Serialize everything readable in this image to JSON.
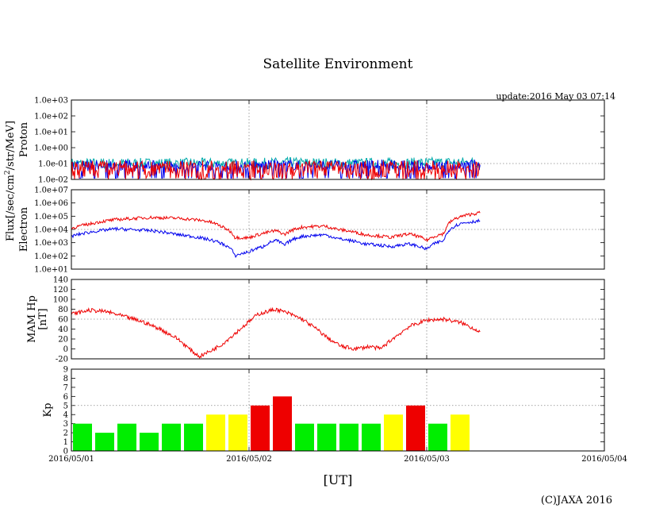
{
  "title": "Satellite Environment",
  "update": "update:2016 May 03 07:14",
  "copyright": "(C)JAXA 2016",
  "x_axis": {
    "label": "[UT]",
    "ticks": [
      "2016/05/01",
      "2016/05/02",
      "2016/05/03",
      "2016/05/04"
    ],
    "range_days": [
      0,
      3
    ],
    "data_end_day": 2.3
  },
  "flux_label": {
    "prefix": "Flux[/sec/cm",
    "sup": "2",
    "suffix": "/str/MeV]"
  },
  "colors": {
    "red": "#ee0000",
    "blue": "#0000ee",
    "green": "#22cc44",
    "teal": "#00aaaa",
    "yellow": "#ffff00",
    "kp_green": "#00ee00",
    "grid": "#888888"
  },
  "chart_data": [
    {
      "name": "proton",
      "type": "line",
      "ylabel": "Proton",
      "scale": "log",
      "ylim": [
        0.01,
        1000
      ],
      "ticks": [
        "1.0e-02",
        "1.0e-01",
        "1.0e+00",
        "1.0e+01",
        "1.0e+02",
        "1.0e+03"
      ],
      "series": [
        {
          "color": "teal",
          "values": [
            [
              0,
              0.1
            ],
            [
              0.25,
              0.1
            ],
            [
              0.5,
              0.1
            ],
            [
              0.75,
              0.1
            ],
            [
              1.0,
              0.1
            ],
            [
              1.25,
              0.11
            ],
            [
              1.5,
              0.1
            ],
            [
              1.75,
              0.1
            ],
            [
              2.0,
              0.11
            ],
            [
              2.3,
              0.12
            ]
          ]
        },
        {
          "color": "blue",
          "values": [
            [
              0,
              0.07
            ],
            [
              0.25,
              0.08
            ],
            [
              0.5,
              0.07
            ],
            [
              0.75,
              0.08
            ],
            [
              1.0,
              0.07
            ],
            [
              1.25,
              0.08
            ],
            [
              1.5,
              0.07
            ],
            [
              1.75,
              0.08
            ],
            [
              2.0,
              0.07
            ],
            [
              2.3,
              0.08
            ]
          ]
        },
        {
          "color": "red",
          "values": [
            [
              0,
              0.02
            ],
            [
              0.5,
              0.02
            ],
            [
              1.0,
              0.02
            ],
            [
              1.5,
              0.02
            ],
            [
              2.0,
              0.02
            ],
            [
              2.3,
              0.02
            ]
          ]
        }
      ]
    },
    {
      "name": "electron",
      "type": "line",
      "ylabel": "Electron",
      "scale": "log",
      "ylim": [
        10,
        10000000
      ],
      "ticks": [
        "1.0e+01",
        "1.0e+02",
        "1.0e+03",
        "1.0e+04",
        "1.0e+05",
        "1.0e+06",
        "1.0e+07"
      ],
      "series": [
        {
          "color": "red",
          "values": [
            [
              0,
              12000
            ],
            [
              0.1,
              25000
            ],
            [
              0.25,
              55000
            ],
            [
              0.45,
              80000
            ],
            [
              0.6,
              70000
            ],
            [
              0.75,
              45000
            ],
            [
              0.85,
              15000
            ],
            [
              0.92,
              2500
            ],
            [
              1.0,
              2300
            ],
            [
              1.08,
              5000
            ],
            [
              1.15,
              8000
            ],
            [
              1.2,
              4000
            ],
            [
              1.3,
              15000
            ],
            [
              1.42,
              18000
            ],
            [
              1.5,
              10000
            ],
            [
              1.65,
              4000
            ],
            [
              1.8,
              2500
            ],
            [
              1.9,
              4500
            ],
            [
              2.0,
              1500
            ],
            [
              2.1,
              5000
            ],
            [
              2.2,
              100000
            ],
            [
              2.3,
              180000
            ]
          ]
        },
        {
          "color": "blue",
          "values": [
            [
              0,
              3000
            ],
            [
              0.1,
              6000
            ],
            [
              0.25,
              11000
            ],
            [
              0.45,
              8000
            ],
            [
              0.6,
              4000
            ],
            [
              0.75,
              2000
            ],
            [
              0.85,
              800
            ],
            [
              0.92,
              100
            ],
            [
              1.0,
              200
            ],
            [
              1.08,
              500
            ],
            [
              1.15,
              1500
            ],
            [
              1.2,
              600
            ],
            [
              1.3,
              3000
            ],
            [
              1.42,
              4000
            ],
            [
              1.5,
              2000
            ],
            [
              1.65,
              800
            ],
            [
              1.8,
              500
            ],
            [
              1.9,
              800
            ],
            [
              2.0,
              300
            ],
            [
              2.1,
              1500
            ],
            [
              2.2,
              30000
            ],
            [
              2.3,
              45000
            ]
          ]
        }
      ]
    },
    {
      "name": "mam",
      "type": "line",
      "ylabel": "MAM Hp",
      "ylabel2": "[nT]",
      "scale": "linear",
      "ylim": [
        -20,
        140
      ],
      "ticks": [
        -20,
        0,
        20,
        40,
        60,
        80,
        100,
        120,
        140
      ],
      "series": [
        {
          "color": "red",
          "values": [
            [
              0,
              70
            ],
            [
              0.1,
              78
            ],
            [
              0.2,
              75
            ],
            [
              0.3,
              65
            ],
            [
              0.4,
              55
            ],
            [
              0.5,
              40
            ],
            [
              0.6,
              20
            ],
            [
              0.68,
              -5
            ],
            [
              0.72,
              -15
            ],
            [
              0.78,
              -5
            ],
            [
              0.85,
              10
            ],
            [
              0.95,
              40
            ],
            [
              1.05,
              70
            ],
            [
              1.15,
              80
            ],
            [
              1.22,
              72
            ],
            [
              1.3,
              60
            ],
            [
              1.38,
              40
            ],
            [
              1.45,
              20
            ],
            [
              1.52,
              5
            ],
            [
              1.6,
              0
            ],
            [
              1.68,
              5
            ],
            [
              1.74,
              0
            ],
            [
              1.8,
              18
            ],
            [
              1.9,
              45
            ],
            [
              2.0,
              58
            ],
            [
              2.1,
              60
            ],
            [
              2.2,
              52
            ],
            [
              2.3,
              35
            ]
          ]
        }
      ]
    },
    {
      "name": "kp",
      "type": "bar",
      "ylabel": "Kp",
      "ylim": [
        0,
        9
      ],
      "ticks": [
        0,
        1,
        2,
        3,
        4,
        5,
        6,
        7,
        8,
        9
      ],
      "values": [
        3,
        2,
        3,
        2,
        3,
        3,
        4,
        4,
        5,
        6,
        3,
        3,
        3,
        3,
        4,
        5,
        3,
        4
      ],
      "colors": [
        "kp_green",
        "kp_green",
        "kp_green",
        "kp_green",
        "kp_green",
        "kp_green",
        "yellow",
        "yellow",
        "red",
        "red",
        "kp_green",
        "kp_green",
        "kp_green",
        "kp_green",
        "yellow",
        "red",
        "kp_green",
        "yellow"
      ]
    }
  ]
}
